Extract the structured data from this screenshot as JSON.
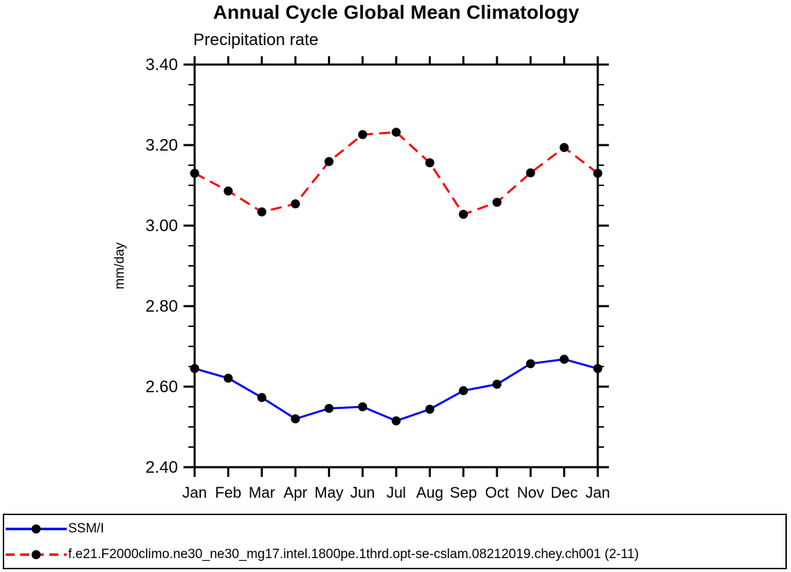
{
  "header": {
    "title": "Annual Cycle Global Mean Climatology",
    "subtitle": "Precipitation rate"
  },
  "chart_data": {
    "type": "line",
    "title": "Annual Cycle Global Mean Climatology",
    "subtitle": "Precipitation rate",
    "xlabel": "",
    "ylabel": "mm/day",
    "categories": [
      "Jan",
      "Feb",
      "Mar",
      "Apr",
      "May",
      "Jun",
      "Jul",
      "Aug",
      "Sep",
      "Oct",
      "Nov",
      "Dec",
      "Jan"
    ],
    "ylim": [
      2.4,
      3.4
    ],
    "y_major_tick_step": 0.2,
    "y_minor_tick_step": 0.05,
    "y_tick_labels": [
      "2.40",
      "2.60",
      "2.80",
      "3.00",
      "3.20",
      "3.40"
    ],
    "grid": false,
    "legend_position": "bottom box, full width",
    "series": [
      {
        "name": "SSM/I",
        "color": "#0000ff",
        "line_style": "solid",
        "marker": "filled-circle",
        "marker_color": "#000000",
        "values": [
          2.645,
          2.621,
          2.573,
          2.52,
          2.546,
          2.55,
          2.515,
          2.544,
          2.59,
          2.606,
          2.657,
          2.668,
          2.645
        ]
      },
      {
        "name": "f.e21.F2000climo.ne30_ne30_mg17.intel.1800pe.1thrd.opt-se-cslam.08212019.chey.ch001 (2-11)",
        "color": "#ff0000",
        "line_style": "dashed",
        "marker": "filled-circle",
        "marker_color": "#000000",
        "values": [
          3.13,
          3.086,
          3.034,
          3.054,
          3.159,
          3.226,
          3.232,
          3.156,
          3.028,
          3.058,
          3.131,
          3.194,
          3.13
        ]
      }
    ]
  },
  "colors": {
    "axis": "#000000",
    "background": "#ffffff"
  }
}
